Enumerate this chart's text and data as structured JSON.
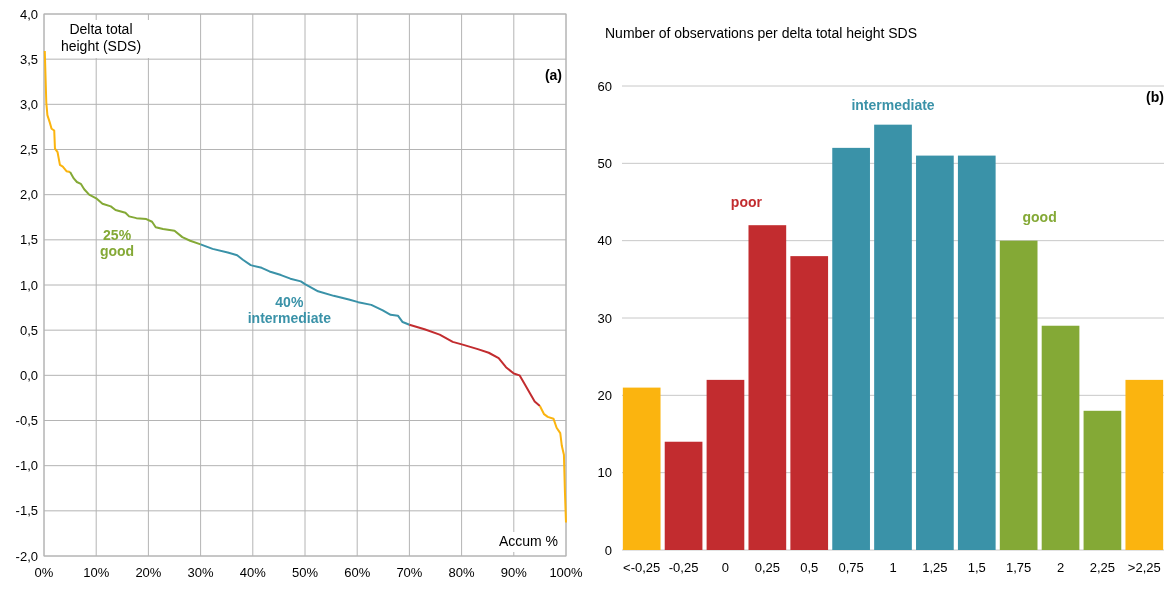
{
  "chart_data": [
    {
      "type": "line",
      "ylabel": "Delta total height (SDS)",
      "xlabel": "Accum %",
      "xlim": [
        0,
        100
      ],
      "ylim": [
        -2,
        4
      ],
      "xticks": [
        {
          "value": 0,
          "label": "0%"
        },
        {
          "value": 10,
          "label": "10%"
        },
        {
          "value": 20,
          "label": "20%"
        },
        {
          "value": 30,
          "label": "30%"
        },
        {
          "value": 40,
          "label": "40%"
        },
        {
          "value": 50,
          "label": "50%"
        },
        {
          "value": 60,
          "label": "60%"
        },
        {
          "value": 70,
          "label": "70%"
        },
        {
          "value": 80,
          "label": "80%"
        },
        {
          "value": 90,
          "label": "90%"
        },
        {
          "value": 100,
          "label": "100%"
        }
      ],
      "yticks": [
        {
          "value": -2,
          "label": "-2,0"
        },
        {
          "value": -1.5,
          "label": "-1,5"
        },
        {
          "value": -1,
          "label": "-1,0"
        },
        {
          "value": -0.5,
          "label": "-0,5"
        },
        {
          "value": 0,
          "label": "0,0"
        },
        {
          "value": 0.5,
          "label": "0,5"
        },
        {
          "value": 1,
          "label": "1,0"
        },
        {
          "value": 1.5,
          "label": "1,5"
        },
        {
          "value": 2,
          "label": "2,0"
        },
        {
          "value": 2.5,
          "label": "2,5"
        },
        {
          "value": 3,
          "label": "3,0"
        },
        {
          "value": 3.5,
          "label": "3,5"
        },
        {
          "value": 4,
          "label": "4,0"
        }
      ],
      "grid": true,
      "marker": "none",
      "line_style": "solid",
      "series": [
        {
          "color": "#fbb40f",
          "x": [
            0.15,
            0.44,
            0.65,
            1.1,
            1.45,
            1.96,
            2.1,
            2.6,
            3.05,
            3.6,
            4.3,
            5.0
          ],
          "values": [
            3.59,
            3.02,
            2.88,
            2.8,
            2.73,
            2.71,
            2.51,
            2.47,
            2.33,
            2.31,
            2.26,
            2.25
          ]
        },
        {
          "color": "#84a936",
          "x": [
            5.0,
            5.7,
            6.3,
            7.05,
            7.7,
            8.65,
            10,
            11.2,
            12.8,
            13.7,
            15.6,
            16.3,
            17.7,
            19.6,
            20.7,
            21.4,
            22.8,
            25,
            26.5,
            28,
            30
          ],
          "values": [
            2.25,
            2.18,
            2.14,
            2.12,
            2.06,
            2.0,
            1.96,
            1.9,
            1.87,
            1.83,
            1.8,
            1.76,
            1.74,
            1.73,
            1.7,
            1.64,
            1.62,
            1.6,
            1.53,
            1.49,
            1.45
          ]
        },
        {
          "color": "#3a92a8",
          "x": [
            30,
            32.3,
            35.2,
            37,
            38.1,
            39.6,
            41.7,
            43.2,
            45.4,
            47.2,
            49.2,
            50,
            52.5,
            55.5,
            58.4,
            60.2,
            62.7,
            64.9,
            66.4,
            67.8,
            68.7,
            70
          ],
          "values": [
            1.45,
            1.4,
            1.36,
            1.33,
            1.28,
            1.22,
            1.19,
            1.15,
            1.11,
            1.07,
            1.04,
            1.01,
            0.93,
            0.88,
            0.84,
            0.81,
            0.78,
            0.72,
            0.67,
            0.66,
            0.59,
            0.56
          ]
        },
        {
          "color": "#c22c2f",
          "x": [
            70,
            72.9,
            75.8,
            78.3,
            80.2,
            83.1,
            85.2,
            87.1,
            88.5,
            90,
            91.1,
            92.1,
            93.2,
            94,
            95
          ],
          "values": [
            0.56,
            0.51,
            0.45,
            0.37,
            0.34,
            0.29,
            0.25,
            0.19,
            0.09,
            0.02,
            0.0,
            -0.1,
            -0.21,
            -0.29,
            -0.34
          ]
        },
        {
          "color": "#fbb40f",
          "x": [
            95,
            95.8,
            96.5,
            97.6,
            98.2,
            98.9,
            99.2,
            99.6,
            99.8,
            100
          ],
          "values": [
            -0.34,
            -0.43,
            -0.46,
            -0.48,
            -0.58,
            -0.64,
            -0.78,
            -0.88,
            -1.3,
            -1.63
          ]
        }
      ],
      "annotations": [
        "25% good",
        "40% intermediate",
        "(a)"
      ]
    },
    {
      "type": "bar",
      "title": "Number of observations per delta total height SDS",
      "categories": [
        "<-0,25",
        "-0,25",
        "0",
        "0,25",
        "0,5",
        "0,75",
        "1",
        "1,25",
        "1,5",
        "1,75",
        "2",
        "2,25",
        ">2,25"
      ],
      "values": [
        21,
        14,
        22,
        42,
        38,
        52,
        55,
        51,
        51,
        40,
        29,
        18,
        22
      ],
      "colors": [
        "#fbb40f",
        "#c22c2f",
        "#c22c2f",
        "#c22c2f",
        "#c22c2f",
        "#3a92a8",
        "#3a92a8",
        "#3a92a8",
        "#3a92a8",
        "#84a936",
        "#84a936",
        "#84a936",
        "#fbb40f"
      ],
      "ylim": [
        0,
        60
      ],
      "yticks": [
        0,
        10,
        20,
        30,
        40,
        50,
        60
      ],
      "grid": "y",
      "annotations": [
        "poor",
        "intermediate",
        "good",
        "(b)"
      ]
    }
  ]
}
